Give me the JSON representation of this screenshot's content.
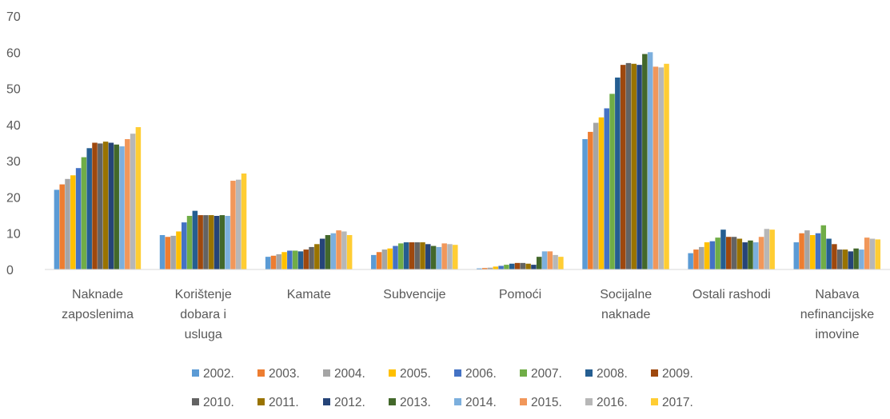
{
  "chart_data": {
    "type": "bar",
    "categories": [
      [
        "Naknade",
        "zaposlenima"
      ],
      [
        "Korištenje",
        "dobara i",
        "usluga"
      ],
      [
        "Kamate"
      ],
      [
        "Subvencije"
      ],
      [
        "Pomoći"
      ],
      [
        "Socijalne",
        "naknade"
      ],
      [
        "Ostali rashodi"
      ],
      [
        "Nabava",
        "nefinancijske",
        "imovine"
      ]
    ],
    "ylim": [
      0,
      70
    ],
    "yticks": [
      "0",
      "10",
      "20",
      "30",
      "40",
      "50",
      "60",
      "70"
    ],
    "grid": false,
    "legend_position": "bottom",
    "series": [
      {
        "name": "2002.",
        "color": "#5b9bd5",
        "values": [
          22.0,
          9.5,
          3.5,
          4.0,
          0.3,
          36.0,
          4.5,
          7.5
        ]
      },
      {
        "name": "2003.",
        "color": "#ed7d31",
        "values": [
          23.5,
          9.0,
          3.8,
          4.8,
          0.4,
          38.0,
          5.5,
          10.0
        ]
      },
      {
        "name": "2004.",
        "color": "#a5a5a5",
        "values": [
          25.0,
          9.3,
          4.2,
          5.5,
          0.5,
          40.5,
          6.2,
          10.8
        ]
      },
      {
        "name": "2005.",
        "color": "#ffc000",
        "values": [
          26.0,
          10.5,
          4.8,
          5.8,
          0.8,
          42.0,
          7.5,
          9.5
        ]
      },
      {
        "name": "2006.",
        "color": "#4472c4",
        "values": [
          28.0,
          13.0,
          5.2,
          6.5,
          1.0,
          44.5,
          7.8,
          10.0
        ]
      },
      {
        "name": "2007.",
        "color": "#70ad47",
        "values": [
          31.0,
          14.8,
          5.2,
          7.2,
          1.3,
          48.5,
          8.8,
          12.2
        ]
      },
      {
        "name": "2008.",
        "color": "#255e91",
        "values": [
          33.5,
          16.2,
          5.0,
          7.5,
          1.6,
          53.0,
          11.0,
          8.5
        ]
      },
      {
        "name": "2009.",
        "color": "#9e480e",
        "values": [
          35.0,
          15.0,
          5.5,
          7.5,
          1.8,
          56.5,
          9.0,
          7.0
        ]
      },
      {
        "name": "2010.",
        "color": "#636363",
        "values": [
          34.8,
          15.0,
          6.2,
          7.5,
          1.8,
          57.0,
          9.0,
          5.5
        ]
      },
      {
        "name": "2011.",
        "color": "#997300",
        "values": [
          35.3,
          15.0,
          7.0,
          7.5,
          1.6,
          56.8,
          8.5,
          5.5
        ]
      },
      {
        "name": "2012.",
        "color": "#264478",
        "values": [
          35.0,
          14.8,
          8.5,
          7.0,
          1.3,
          56.5,
          7.5,
          5.0
        ]
      },
      {
        "name": "2013.",
        "color": "#43682b",
        "values": [
          34.5,
          15.0,
          9.5,
          6.5,
          3.5,
          59.5,
          8.0,
          5.8
        ]
      },
      {
        "name": "2014.",
        "color": "#7cafdd",
        "values": [
          34.0,
          14.8,
          10.0,
          6.2,
          5.0,
          60.0,
          7.5,
          5.5
        ]
      },
      {
        "name": "2015.",
        "color": "#f1975a",
        "values": [
          36.0,
          24.5,
          10.8,
          7.2,
          5.0,
          56.0,
          9.0,
          8.8
        ]
      },
      {
        "name": "2016.",
        "color": "#b7b7b7",
        "values": [
          37.5,
          24.8,
          10.5,
          7.0,
          4.0,
          55.8,
          11.2,
          8.5
        ]
      },
      {
        "name": "2017.",
        "color": "#ffcd33",
        "values": [
          39.3,
          26.5,
          9.5,
          6.8,
          3.5,
          56.8,
          11.0,
          8.3
        ]
      }
    ]
  }
}
